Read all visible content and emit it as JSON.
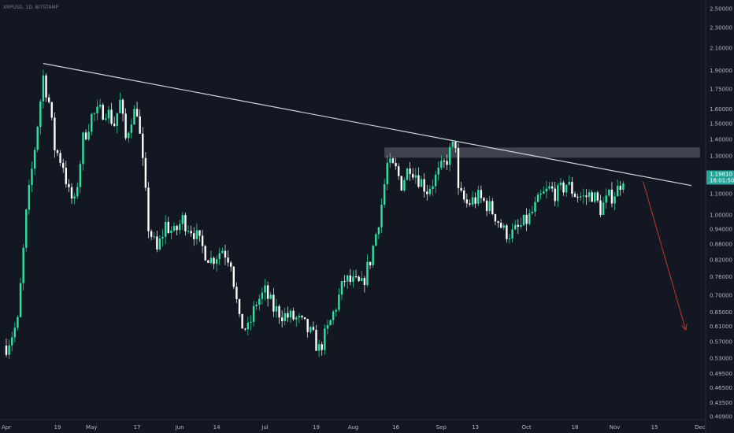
{
  "symbol_label": "XRPUSD, 1D, BITSTAMP",
  "colors": {
    "background": "#131722",
    "up": "#26a69a",
    "up_bright": "#2de3a0",
    "down": "#ffffff",
    "trendline": "#d1d4dc",
    "resistance_zone": "#787b86",
    "arrow": "#c0392b",
    "axis_text": "#b2b5be"
  },
  "chart_data": {
    "type": "candlestick",
    "y_scale": "log",
    "ylim": [
      0.4,
      2.6
    ],
    "y_ticks": [
      "2.50000",
      "2.30000",
      "2.10000",
      "1.90000",
      "1.75000",
      "1.60000",
      "1.50000",
      "1.40000",
      "1.30000",
      "1.20000",
      "1.10000",
      "1.00000",
      "0.94000",
      "0.88000",
      "0.82000",
      "0.76000",
      "0.70000",
      "0.65000",
      "0.61000",
      "0.57000",
      "0.53000",
      "0.49500",
      "0.46500",
      "0.43500",
      "0.40900"
    ],
    "x_ticks": [
      "Apr",
      "19",
      "May",
      "17",
      "Jun",
      "14",
      "Jul",
      "19",
      "Aug",
      "16",
      "Sep",
      "13",
      "Oct",
      "18",
      "Nov",
      "15",
      "Dec"
    ],
    "x_tick_dates": [
      "2021-04-01",
      "2021-04-19",
      "2021-05-01",
      "2021-05-17",
      "2021-06-01",
      "2021-06-14",
      "2021-07-01",
      "2021-07-19",
      "2021-08-01",
      "2021-08-16",
      "2021-09-01",
      "2021-09-13",
      "2021-10-01",
      "2021-10-18",
      "2021-11-01",
      "2021-11-15",
      "2021-12-01"
    ],
    "current_price": "1.19810",
    "countdown": "16:01:50",
    "anchors": [
      [
        "2021-04-01",
        0.56
      ],
      [
        "2021-04-05",
        0.62
      ],
      [
        "2021-04-08",
        1.0
      ],
      [
        "2021-04-11",
        1.35
      ],
      [
        "2021-04-14",
        1.85
      ],
      [
        "2021-04-16",
        1.65
      ],
      [
        "2021-04-18",
        1.35
      ],
      [
        "2021-04-21",
        1.25
      ],
      [
        "2021-04-23",
        1.1
      ],
      [
        "2021-04-25",
        1.05
      ],
      [
        "2021-04-28",
        1.4
      ],
      [
        "2021-05-01",
        1.55
      ],
      [
        "2021-05-06",
        1.6
      ],
      [
        "2021-05-09",
        1.5
      ],
      [
        "2021-05-11",
        1.65
      ],
      [
        "2021-05-13",
        1.4
      ],
      [
        "2021-05-15",
        1.55
      ],
      [
        "2021-05-17",
        1.6
      ],
      [
        "2021-05-19",
        1.25
      ],
      [
        "2021-05-21",
        0.95
      ],
      [
        "2021-05-24",
        0.85
      ],
      [
        "2021-05-27",
        0.96
      ],
      [
        "2021-05-30",
        0.92
      ],
      [
        "2021-06-02",
        0.98
      ],
      [
        "2021-06-06",
        0.93
      ],
      [
        "2021-06-08",
        0.88
      ],
      [
        "2021-06-12",
        0.82
      ],
      [
        "2021-06-16",
        0.86
      ],
      [
        "2021-06-19",
        0.82
      ],
      [
        "2021-06-22",
        0.62
      ],
      [
        "2021-06-25",
        0.6
      ],
      [
        "2021-06-28",
        0.68
      ],
      [
        "2021-07-01",
        0.71
      ],
      [
        "2021-07-04",
        0.66
      ],
      [
        "2021-07-08",
        0.64
      ],
      [
        "2021-07-12",
        0.63
      ],
      [
        "2021-07-15",
        0.61
      ],
      [
        "2021-07-18",
        0.58
      ],
      [
        "2021-07-20",
        0.55
      ],
      [
        "2021-07-23",
        0.6
      ],
      [
        "2021-07-26",
        0.67
      ],
      [
        "2021-07-29",
        0.75
      ],
      [
        "2021-08-01",
        0.74
      ],
      [
        "2021-08-04",
        0.73
      ],
      [
        "2021-08-07",
        0.82
      ],
      [
        "2021-08-09",
        0.92
      ],
      [
        "2021-08-11",
        1.05
      ],
      [
        "2021-08-13",
        1.25
      ],
      [
        "2021-08-16",
        1.22
      ],
      [
        "2021-08-18",
        1.15
      ],
      [
        "2021-08-21",
        1.25
      ],
      [
        "2021-08-24",
        1.18
      ],
      [
        "2021-08-27",
        1.12
      ],
      [
        "2021-08-30",
        1.18
      ],
      [
        "2021-09-02",
        1.25
      ],
      [
        "2021-09-04",
        1.32
      ],
      [
        "2021-09-06",
        1.38
      ],
      [
        "2021-09-07",
        1.1
      ],
      [
        "2021-09-10",
        1.05
      ],
      [
        "2021-09-14",
        1.08
      ],
      [
        "2021-09-17",
        1.05
      ],
      [
        "2021-09-20",
        1.0
      ],
      [
        "2021-09-23",
        0.93
      ],
      [
        "2021-09-26",
        0.92
      ],
      [
        "2021-09-29",
        0.95
      ],
      [
        "2021-10-02",
        0.99
      ],
      [
        "2021-10-06",
        1.08
      ],
      [
        "2021-10-09",
        1.12
      ],
      [
        "2021-10-12",
        1.1
      ],
      [
        "2021-10-15",
        1.15
      ],
      [
        "2021-10-18",
        1.1
      ],
      [
        "2021-10-21",
        1.08
      ],
      [
        "2021-10-24",
        1.1
      ],
      [
        "2021-10-27",
        1.03
      ],
      [
        "2021-10-30",
        1.08
      ],
      [
        "2021-11-02",
        1.12
      ],
      [
        "2021-11-04",
        1.19
      ]
    ],
    "trendline": {
      "from": [
        "2021-04-14",
        1.96
      ],
      "to": [
        "2021-11-28",
        1.14
      ]
    },
    "resistance_zone": {
      "from": "2021-08-12",
      "to": "2021-12-01",
      "low": 1.29,
      "high": 1.35
    },
    "projection_arrow": {
      "from": [
        "2021-11-11",
        1.16
      ],
      "to": [
        "2021-11-26",
        0.6
      ]
    }
  }
}
